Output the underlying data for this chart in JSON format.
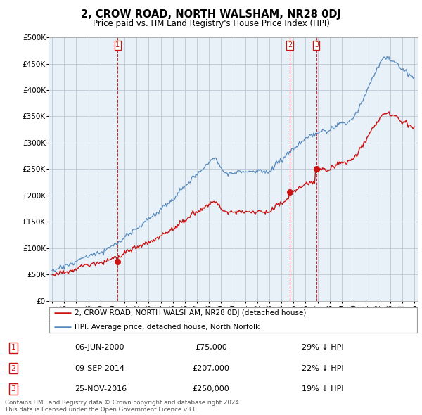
{
  "title": "2, CROW ROAD, NORTH WALSHAM, NR28 0DJ",
  "subtitle": "Price paid vs. HM Land Registry's House Price Index (HPI)",
  "ylabel_ticks": [
    "£0",
    "£50K",
    "£100K",
    "£150K",
    "£200K",
    "£250K",
    "£300K",
    "£350K",
    "£400K",
    "£450K",
    "£500K"
  ],
  "ytick_values": [
    0,
    50000,
    100000,
    150000,
    200000,
    250000,
    300000,
    350000,
    400000,
    450000,
    500000
  ],
  "hpi_color": "#5588bb",
  "price_color": "#cc1111",
  "vline_color": "#cc1111",
  "chart_bg": "#e8f0f8",
  "background_color": "#ffffff",
  "grid_color": "#c0ccd8",
  "sales": [
    {
      "date_num": 2000.44,
      "price": 75000,
      "label": "1"
    },
    {
      "date_num": 2014.69,
      "price": 207000,
      "label": "2"
    },
    {
      "date_num": 2016.9,
      "price": 250000,
      "label": "3"
    }
  ],
  "legend_entries": [
    "2, CROW ROAD, NORTH WALSHAM, NR28 0DJ (detached house)",
    "HPI: Average price, detached house, North Norfolk"
  ],
  "table_rows": [
    {
      "num": "1",
      "date": "06-JUN-2000",
      "price": "£75,000",
      "hpi": "29% ↓ HPI"
    },
    {
      "num": "2",
      "date": "09-SEP-2014",
      "price": "£207,000",
      "hpi": "22% ↓ HPI"
    },
    {
      "num": "3",
      "date": "25-NOV-2016",
      "price": "£250,000",
      "hpi": "19% ↓ HPI"
    }
  ],
  "footnote": "Contains HM Land Registry data © Crown copyright and database right 2024.\nThis data is licensed under the Open Government Licence v3.0.",
  "xmin": 1994.7,
  "xmax": 2025.3,
  "ymin": 0,
  "ymax": 500000
}
